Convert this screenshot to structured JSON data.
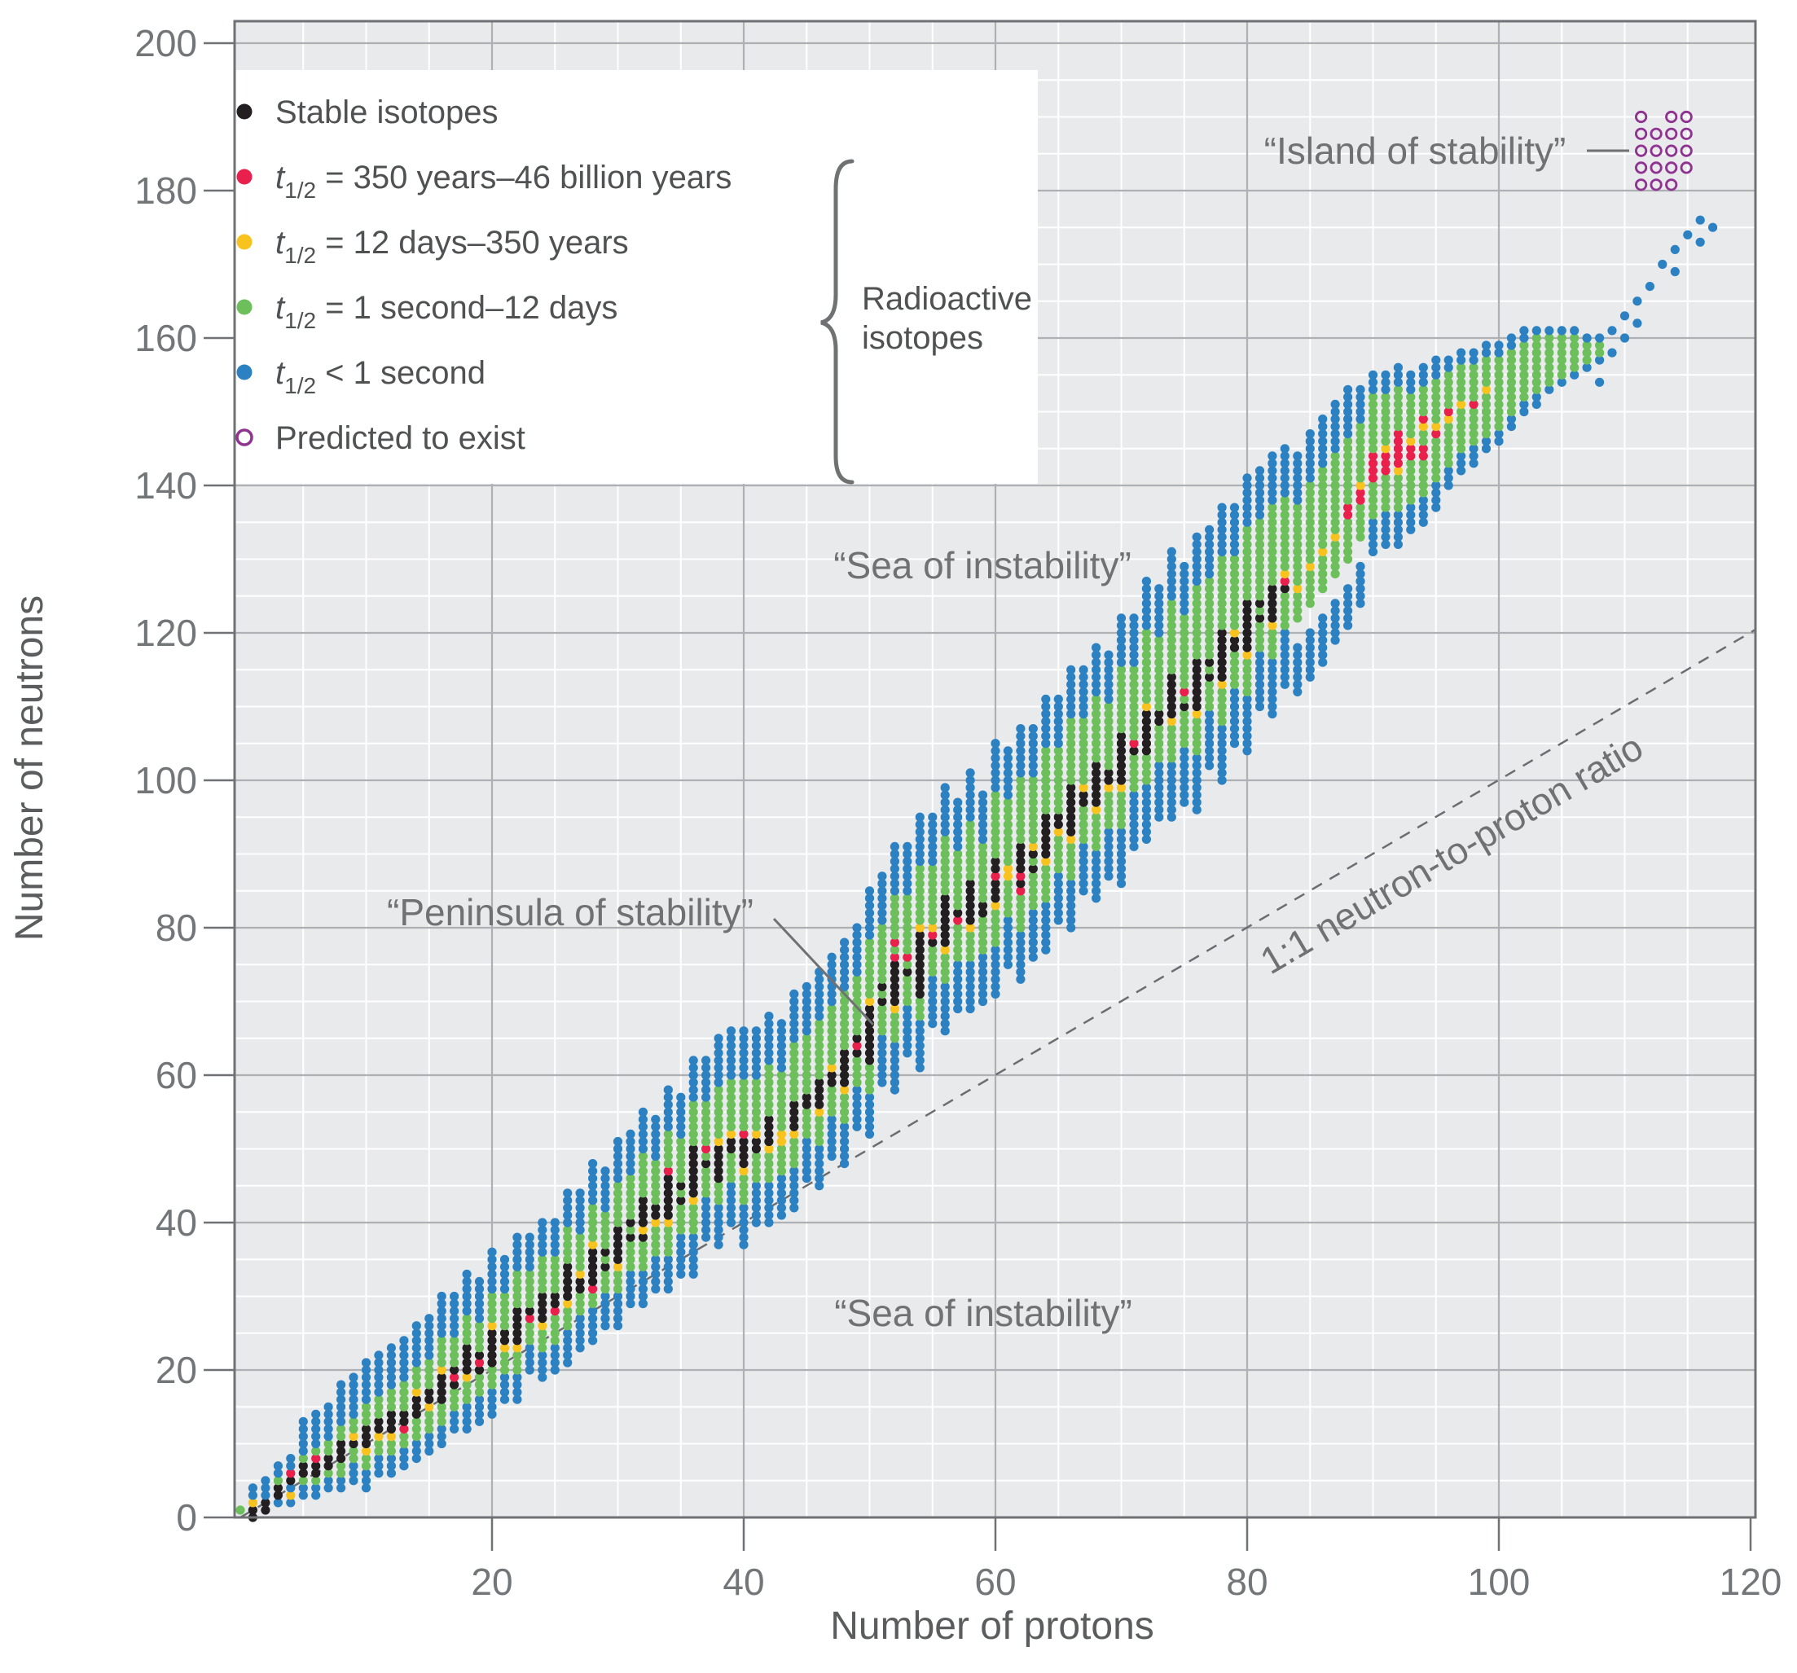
{
  "chart_data": {
    "type": "scatter",
    "title": "",
    "xlabel": "Number of protons",
    "ylabel": "Number of neutrons",
    "xlim": [
      0,
      120
    ],
    "ylim": [
      0,
      200
    ],
    "xticks": [
      20,
      40,
      60,
      80,
      100,
      120
    ],
    "yticks": [
      0,
      20,
      40,
      60,
      80,
      100,
      120,
      140,
      160,
      180,
      200
    ],
    "grid": {
      "minor_step": 5,
      "major_step": 20,
      "minor_color": "#ffffff",
      "major_color": "#aeb1b4",
      "background": "#e9eaec"
    },
    "colors": {
      "k": "#231f20",
      "r": "#e9204c",
      "y": "#f8c31e",
      "g": "#6dbf5c",
      "b": "#2b81c1",
      "p": "#8f3391",
      "axis": "#6f7174",
      "dashed": "#6b6d70"
    },
    "legend": {
      "items": [
        {
          "key": "k",
          "text": "Stable isotopes"
        },
        {
          "key": "r",
          "prefix": "t",
          "sub": "1/2",
          "text": "= 350 years–46 billion years"
        },
        {
          "key": "y",
          "prefix": "t",
          "sub": "1/2",
          "text": "= 12 days–350 years"
        },
        {
          "key": "g",
          "prefix": "t",
          "sub": "1/2",
          "text": "= 1 second–12 days"
        },
        {
          "key": "b",
          "prefix": "t",
          "sub": "1/2",
          "text": "< 1 second"
        },
        {
          "key": "p",
          "open": true,
          "text": "Predicted to exist"
        }
      ],
      "group_label_line1": "Radioactive",
      "group_label_line2": "isotopes"
    },
    "annotations": {
      "island": "“Island of stability”",
      "sea_upper": "“Sea of instability”",
      "sea_lower": "“Sea of instability”",
      "peninsula": "“Peninsula of stability”",
      "ratio": "1:1 neutron-to-proton ratio"
    },
    "ratio_line": {
      "from": [
        0,
        0
      ],
      "to": [
        120.4,
        120.4
      ],
      "style": "dashed"
    },
    "columns": [
      "0:1:g1",
      "1:0:k2y1b2",
      "2:1:k2b3",
      "3:2:b1k2g1b2",
      "4:2:b1y1b1k1r1b2",
      "5:3:b2g1k2g1b5",
      "6:3:b2g1k2r1g1b5",
      "7:4:b2g1k2g2b5",
      "8:4:b2g2k3g2b6",
      "9:5:b3g2k1y1g2b6",
      "10:4:b3g2y1k3g3b6",
      "11:6:b3g2y1k2g3b6",
      "12:6:b3g2y1k3g3b6",
      "13:7:b3g2r1k2g4b6",
      "14:8:b3g3k3y1g3b6",
      "15:9:b3g3y1k2g4b6",
      "16:10:b3g3k4y1g4b6",
      "17:12:b3g3k1r1k1g4b6",
      "18:12:b4g3y1k4g4b6",
      "19:13:b4g3k1r1k1g4b6",
      "20:14:b4g3k5y1g4b6",
      "21:16:b4g3y1k2g5b5",
      "22:16:b4g3y1k5g5b5",
      "23:20:b4g3r1k1g5b5",
      "24:19:b4g3y1k4g5b5",
      "25:20:b4g4r1k2g5b5",
      "26:21:b5g3y1k5g5b5",
      "27:23:b5g3k2y1g5b6",
      "28:24:b5g2r1k5y1g5b6",
      "29:26:b5g3k1g1k1g5b6",
      "30:26:b5g3y1k5g6b6",
      "31:29:b5g4k1g1k1g6b6",
      "32:29:b5g4k1y1k4g6b6",
      "33:31:b5g4y1k2g6b6",
      "34:31:b5g4y1k6r1g5b6",
      "35:33:b6g4k1g1k1g6b6",
      "36:33:b6g4y1k7g6b6",
      "37:38:b6g4k1g1r1g6b6",
      "38:37:b6g3k5y1g7b7",
      "39:40:b6g4k2y1g7b7",
      "40:37:b6g4y1k4r1g7b7",
      "41:40:b6g4k2y1g7b7",
      "42:40:b6g4y1k4g7b7",
      "43:41:b6g4y2g8b7",
      "44:42:b6g4y1k4g8b7",
      "45:46:b6g4k2g8b7",
      "46:45:b6g4y1k4g8b7",
      "47:49:b6g4k2y1g8b7",
      "48:48:b6g4y1k5g8b7",
      "49:53:b6g4k1r1k1g8b7",
      "50:52:b6g4k8y1g8b7",
      "51:59:b7g4k1g1k1g8b7",
      "52:58:b7g4y1k6r1g1r1g6b7",
      "53:63:b7g4k1g1r1g8b7",
      "54:61:b7g3k9y1g8b7",
      "55:67:b7g4k1r1y1g8b7",
      "56:66:b7g4y1k7g8b7",
      "57:69:b7g5r1k1g8b7",
      "58:69:b7g4y1k6g8b7",
      "59:70:b7g5k2g8b7",
      "60:71:b7g5y1k3r1k2g9b7",
      "61:75:b7g5y2g9b7",
      "62:73:b7g5r1k1r1k4g9b7",
      "63:76:b7g5k1g1k1y1g9b7",
      "64:77:b7g5y1k6g9b7",
      "65:81:b7g5y1k2g9b7",
      "66:80:b7g5y1k7g9b7",
      "67:85:b7g5k2y1g9b7",
      "68:84:b7g5y1k6g9b7",
      "69:87:b7g5y1k2g9b7",
      "70:86:b8g5y1k7g9b7",
      "71:91:b8g5k1r1g10b7",
      "72:92:b8g4k6y1g10b7",
      "73:95:b8g5k2g10b7",
      "74:95:b8g5y1k6g10b7",
      "75:97:b8g5k1g1r1g10b7",
      "76:96:b8g5y1k7g10b7",
      "77:102:b8g4k1g1k1g11b7",
      "78:100:b8g5y1k7g10b7",
      "79:105:b8g5k2y1g10b7",
      "80:104:b8g5y1k7g10b7",
      "81:110:b8g4k1g1k1g11b7",
      "82:109:b8g4y1k5g11b7",
      "83:113:b8g5k1r1y1g10b7",
      "84:112:b7w3g4y1g11b7",
      "85:114:b7w3g5y1g11b7",
      "86:116:b7w3g5y1g11b7",
      "87:119:b6w3g5y1g11b7",
      "88:121:b6w3g6r2g9b7",
      "89:124:b6w3g5r2y1g8b5",
      "90:131:b5g5r4g8b3",
      "91:132:b5g5r3y1g7b3",
      "92:132:b5g5y1r5g6b3",
      "93:134:b4g6r2y1g6b3",
      "94:135:b4g5r2g2y1r1g4b3",
      "95:137:b4g6r1y1g6b3",
      "96:140:b3g6y1r1g5b2",
      "97:142:b3g6y1g5b2",
      "98:143:b3g5r1g5b2",
      "99:145:b2g6y1g4b2",
      "100:146:b2g10b2",
      "101:148:b2g9b2",
      "102:150:b2g8b2",
      "103:151:b2g8b1",
      "104:153:b1g7b1",
      "105:154:b1g6b1",
      "106:155:b1g5b1",
      "107:156:b1g3b1",
      "108:157:b1g2b1"
    ],
    "scatter_blue": [
      [
        108,
        154
      ],
      [
        109,
        158
      ],
      [
        109,
        161
      ],
      [
        110,
        160
      ],
      [
        110,
        163
      ],
      [
        111,
        162
      ],
      [
        111,
        165
      ],
      [
        112,
        167
      ],
      [
        113,
        170
      ],
      [
        114,
        169
      ],
      [
        114,
        172
      ],
      [
        115,
        174
      ],
      [
        116,
        173
      ],
      [
        116,
        176
      ],
      [
        117,
        175
      ]
    ],
    "island_rows": [
      {
        "n": 190.0,
        "z": [
          111.3,
          113.7,
          114.9
        ]
      },
      {
        "n": 187.7,
        "z": [
          111.3,
          112.5,
          113.7,
          114.9
        ]
      },
      {
        "n": 185.4,
        "z": [
          111.3,
          112.5,
          113.7,
          114.9
        ]
      },
      {
        "n": 183.1,
        "z": [
          111.3,
          112.5,
          113.7,
          114.9
        ]
      },
      {
        "n": 180.8,
        "z": [
          111.3,
          112.5,
          113.7
        ]
      }
    ]
  }
}
